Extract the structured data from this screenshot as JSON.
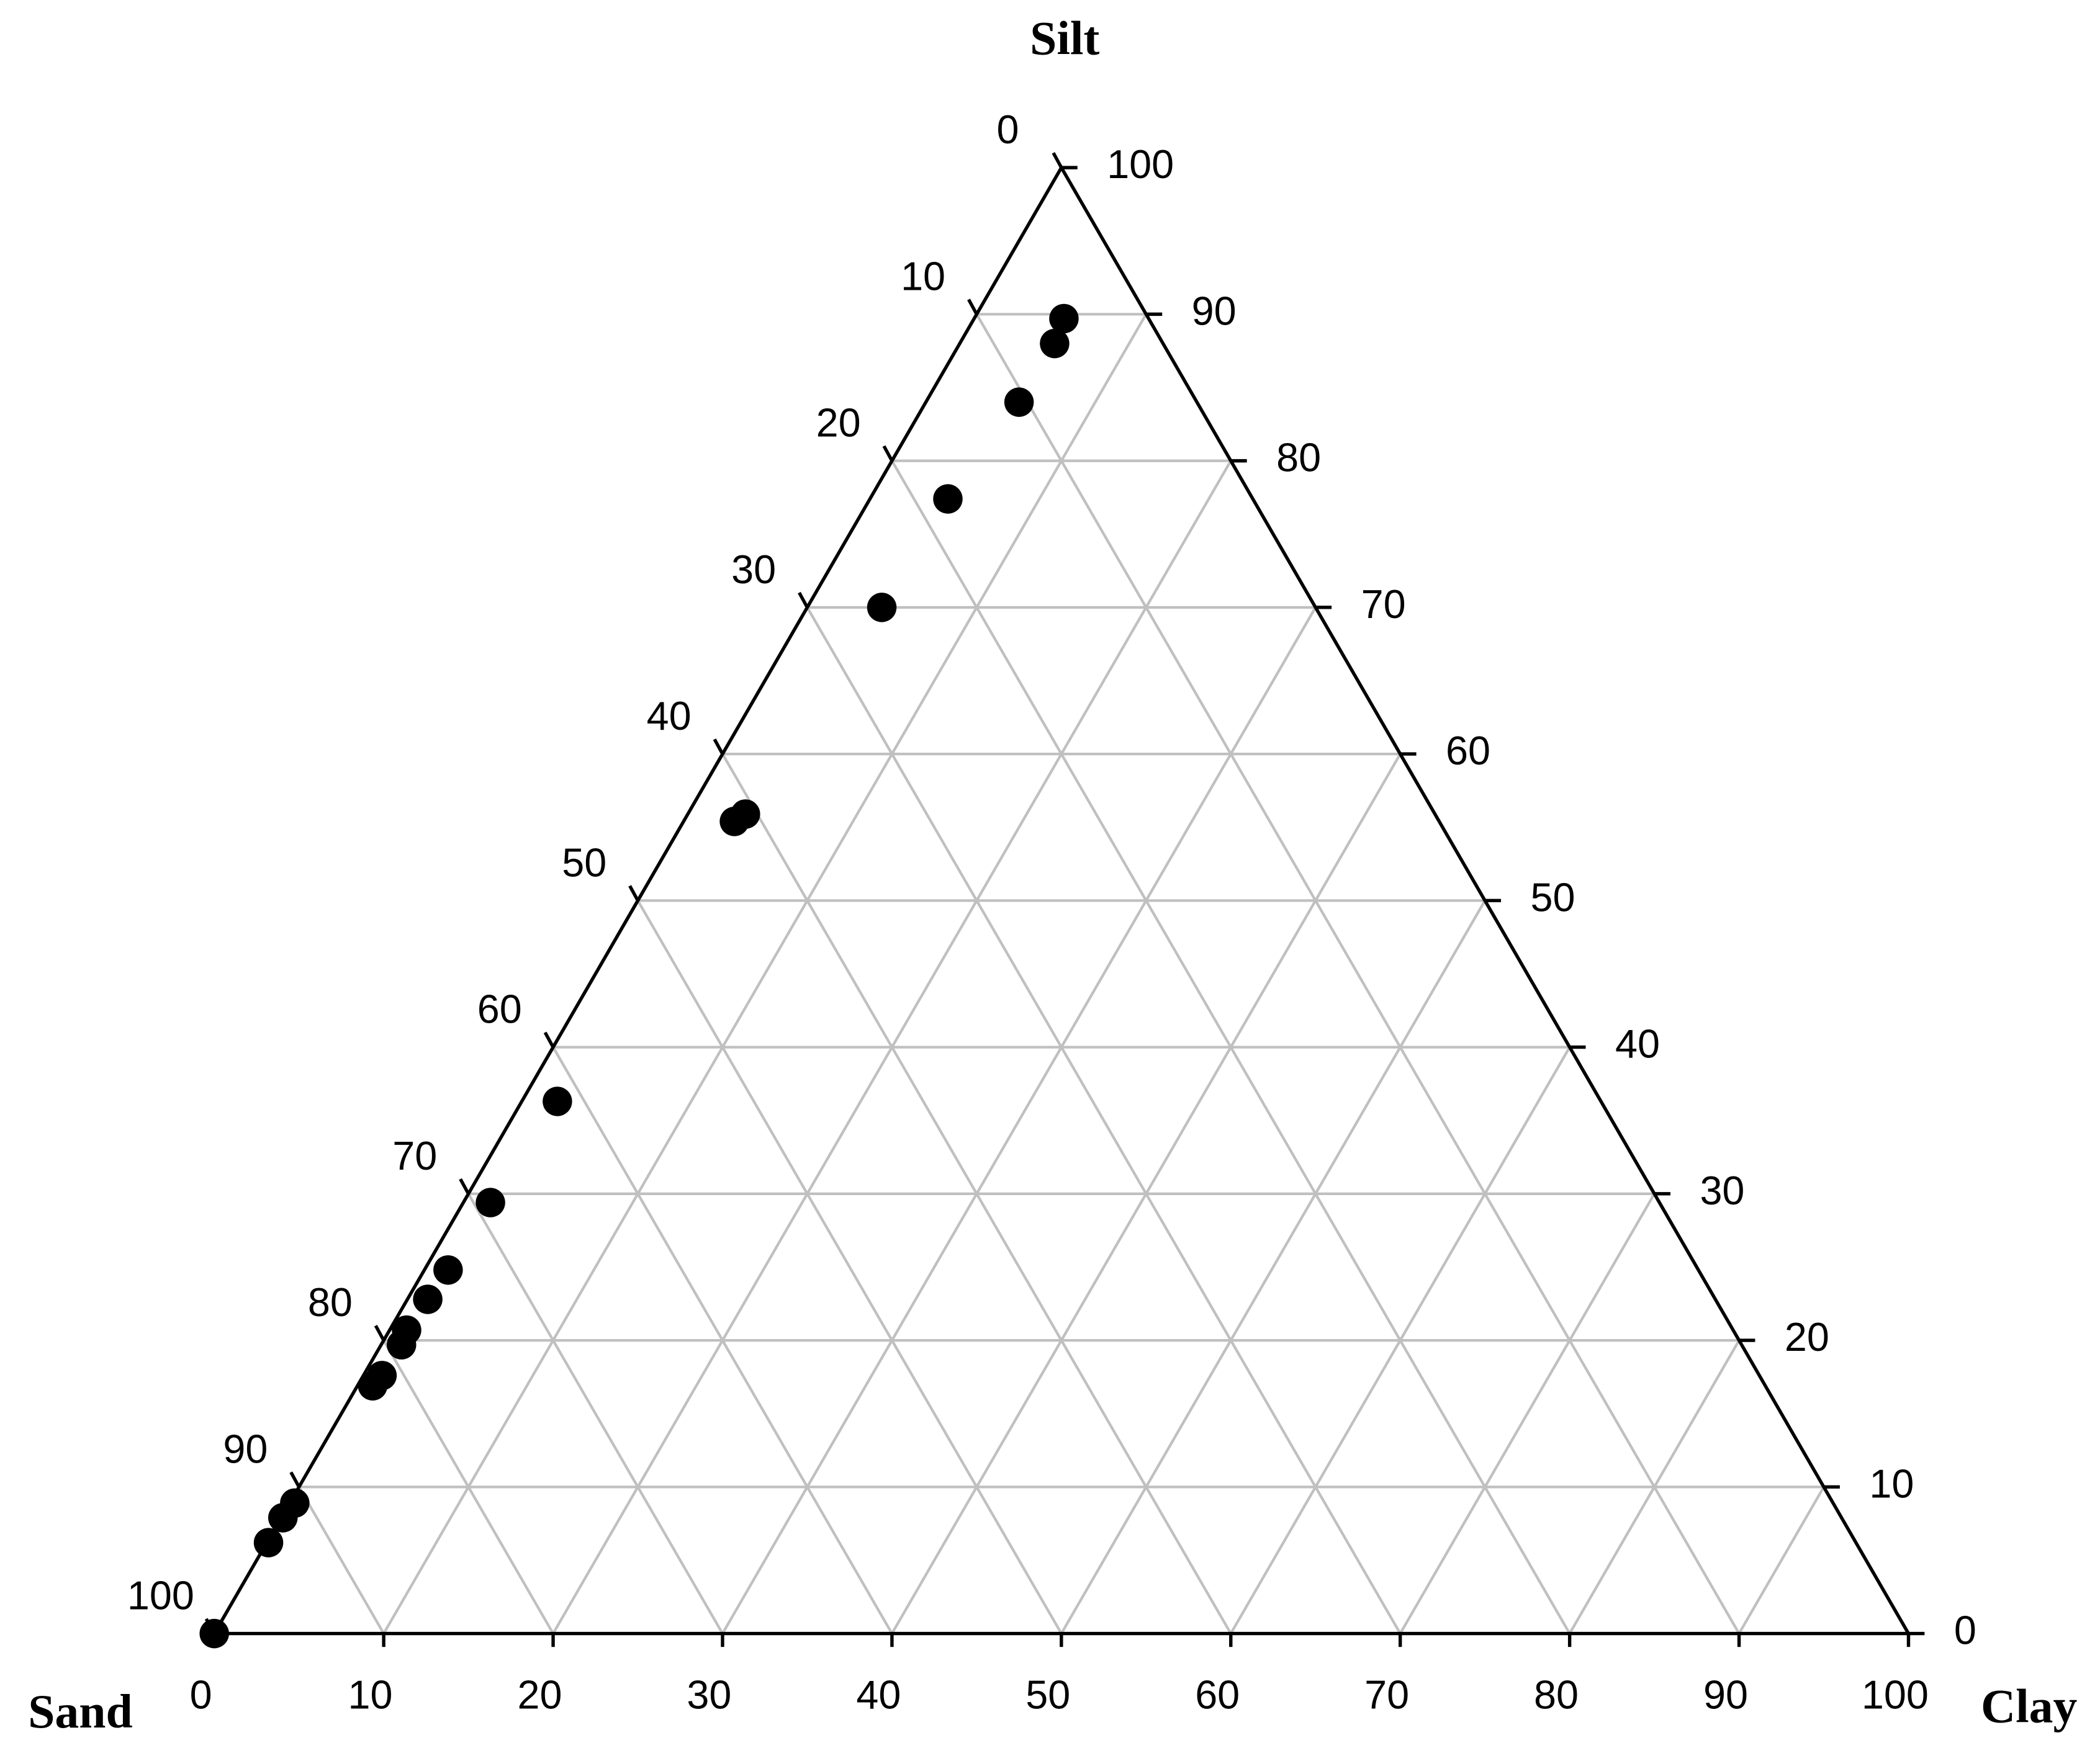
{
  "chart_data": {
    "type": "ternary",
    "axes": {
      "sand": {
        "label": "Sand",
        "ticks": [
          0,
          10,
          20,
          30,
          40,
          50,
          60,
          70,
          80,
          90,
          100
        ]
      },
      "silt": {
        "label": "Silt",
        "ticks": [
          0,
          10,
          20,
          30,
          40,
          50,
          60,
          70,
          80,
          90,
          100
        ]
      },
      "clay": {
        "label": "Clay",
        "ticks": [
          0,
          10,
          20,
          30,
          40,
          50,
          60,
          70,
          80,
          90,
          100
        ]
      }
    },
    "grid": true,
    "color": "#000000",
    "points": {
      "sand": [
        5.0,
        6.4,
        10.5,
        18.0,
        25.6,
        40.7,
        41.6,
        61.6,
        69.0,
        73.8,
        76.0,
        78.3,
        79.1,
        81.3,
        82.2,
        90.8,
        92.0,
        93.7,
        100
      ],
      "silt": [
        89.7,
        88.0,
        84.0,
        77.4,
        70.0,
        55.9,
        55.4,
        36.3,
        29.4,
        24.8,
        22.8,
        20.7,
        19.7,
        17.6,
        16.9,
        8.9,
        7.9,
        6.2,
        0
      ],
      "clay": [
        5.3,
        5.6,
        5.5,
        4.6,
        4.4,
        3.4,
        3.0,
        2.1,
        1.6,
        1.4,
        1.2,
        1.0,
        1.2,
        1.1,
        0.9,
        0.3,
        0.1,
        0.1,
        0
      ]
    }
  }
}
